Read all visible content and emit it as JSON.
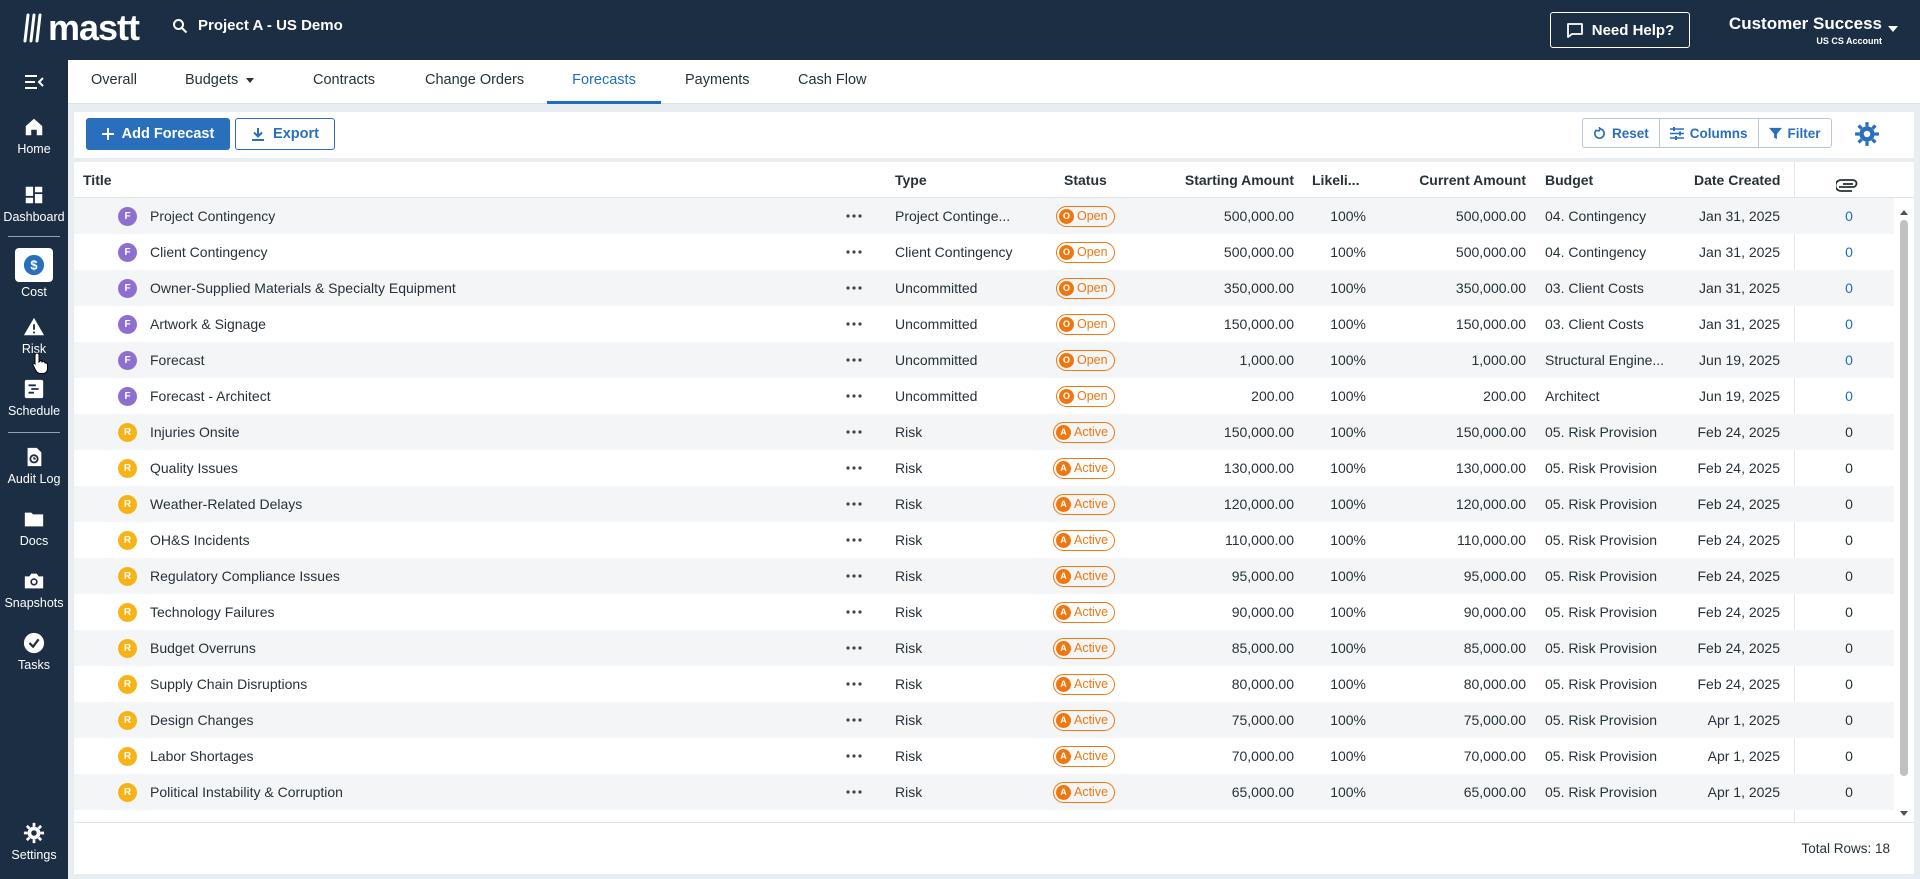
{
  "app": {
    "logo_text": "mastt"
  },
  "topbar": {
    "project": "Project A - US Demo",
    "help_label": "Need Help?",
    "account_name": "Customer Success",
    "account_sub": "US CS Account"
  },
  "sidebar": {
    "items": [
      {
        "label": "Home",
        "icon": "home-icon"
      },
      {
        "label": "Dashboard",
        "icon": "dashboard-icon"
      },
      {
        "label": "Cost",
        "icon": "dollar-icon"
      },
      {
        "label": "Risk",
        "icon": "warning-icon"
      },
      {
        "label": "Schedule",
        "icon": "schedule-icon"
      },
      {
        "label": "Audit Log",
        "icon": "audit-icon"
      },
      {
        "label": "Docs",
        "icon": "folder-icon"
      },
      {
        "label": "Snapshots",
        "icon": "camera-icon"
      },
      {
        "label": "Tasks",
        "icon": "check-circle-icon"
      },
      {
        "label": "Settings",
        "icon": "gear-icon"
      }
    ]
  },
  "tabs": [
    "Overall",
    "Budgets",
    "Contracts",
    "Change Orders",
    "Forecasts",
    "Payments",
    "Cash Flow"
  ],
  "active_tab": "Forecasts",
  "toolbar": {
    "add_label": "Add Forecast",
    "export_label": "Export",
    "reset_label": "Reset",
    "columns_label": "Columns",
    "filter_label": "Filter"
  },
  "columns": {
    "title": "Title",
    "type": "Type",
    "status": "Status",
    "starting_amount": "Starting Amount",
    "likelihood": "Likeli...",
    "current_amount": "Current Amount",
    "budget": "Budget",
    "date_created": "Date Created"
  },
  "rows": [
    {
      "avatar": "F",
      "title": "Project Contingency",
      "type": "Project Continge...",
      "status_icon": "O",
      "status": "Open",
      "starting": "500,000.00",
      "likelihood": "100%",
      "current": "500,000.00",
      "budget": "04. Contingency",
      "date": "Jan 31, 2025",
      "attachments": "0"
    },
    {
      "avatar": "F",
      "title": "Client Contingency",
      "type": "Client Contingency",
      "status_icon": "O",
      "status": "Open",
      "starting": "500,000.00",
      "likelihood": "100%",
      "current": "500,000.00",
      "budget": "04. Contingency",
      "date": "Jan 31, 2025",
      "attachments": "0"
    },
    {
      "avatar": "F",
      "title": "Owner-Supplied Materials & Specialty Equipment",
      "type": "Uncommitted",
      "status_icon": "O",
      "status": "Open",
      "starting": "350,000.00",
      "likelihood": "100%",
      "current": "350,000.00",
      "budget": "03. Client Costs",
      "date": "Jan 31, 2025",
      "attachments": "0"
    },
    {
      "avatar": "F",
      "title": "Artwork & Signage",
      "type": "Uncommitted",
      "status_icon": "O",
      "status": "Open",
      "starting": "150,000.00",
      "likelihood": "100%",
      "current": "150,000.00",
      "budget": "03. Client Costs",
      "date": "Jan 31, 2025",
      "attachments": "0"
    },
    {
      "avatar": "F",
      "title": "Forecast",
      "type": "Uncommitted",
      "status_icon": "O",
      "status": "Open",
      "starting": "1,000.00",
      "likelihood": "100%",
      "current": "1,000.00",
      "budget": "Structural Engine...",
      "date": "Jun 19, 2025",
      "attachments": "0"
    },
    {
      "avatar": "F",
      "title": "Forecast - Architect",
      "type": "Uncommitted",
      "status_icon": "O",
      "status": "Open",
      "starting": "200.00",
      "likelihood": "100%",
      "current": "200.00",
      "budget": "Architect",
      "date": "Jun 19, 2025",
      "attachments": "0"
    },
    {
      "avatar": "R",
      "title": "Injuries Onsite",
      "type": "Risk",
      "status_icon": "A",
      "status": "Active",
      "starting": "150,000.00",
      "likelihood": "100%",
      "current": "150,000.00",
      "budget": "05. Risk Provision",
      "date": "Feb 24, 2025",
      "attachments": "0"
    },
    {
      "avatar": "R",
      "title": "Quality Issues",
      "type": "Risk",
      "status_icon": "A",
      "status": "Active",
      "starting": "130,000.00",
      "likelihood": "100%",
      "current": "130,000.00",
      "budget": "05. Risk Provision",
      "date": "Feb 24, 2025",
      "attachments": "0"
    },
    {
      "avatar": "R",
      "title": "Weather-Related Delays",
      "type": "Risk",
      "status_icon": "A",
      "status": "Active",
      "starting": "120,000.00",
      "likelihood": "100%",
      "current": "120,000.00",
      "budget": "05. Risk Provision",
      "date": "Feb 24, 2025",
      "attachments": "0"
    },
    {
      "avatar": "R",
      "title": "OH&S Incidents",
      "type": "Risk",
      "status_icon": "A",
      "status": "Active",
      "starting": "110,000.00",
      "likelihood": "100%",
      "current": "110,000.00",
      "budget": "05. Risk Provision",
      "date": "Feb 24, 2025",
      "attachments": "0"
    },
    {
      "avatar": "R",
      "title": "Regulatory Compliance Issues",
      "type": "Risk",
      "status_icon": "A",
      "status": "Active",
      "starting": "95,000.00",
      "likelihood": "100%",
      "current": "95,000.00",
      "budget": "05. Risk Provision",
      "date": "Feb 24, 2025",
      "attachments": "0"
    },
    {
      "avatar": "R",
      "title": "Technology Failures",
      "type": "Risk",
      "status_icon": "A",
      "status": "Active",
      "starting": "90,000.00",
      "likelihood": "100%",
      "current": "90,000.00",
      "budget": "05. Risk Provision",
      "date": "Feb 24, 2025",
      "attachments": "0"
    },
    {
      "avatar": "R",
      "title": "Budget Overruns",
      "type": "Risk",
      "status_icon": "A",
      "status": "Active",
      "starting": "85,000.00",
      "likelihood": "100%",
      "current": "85,000.00",
      "budget": "05. Risk Provision",
      "date": "Feb 24, 2025",
      "attachments": "0"
    },
    {
      "avatar": "R",
      "title": "Supply Chain Disruptions",
      "type": "Risk",
      "status_icon": "A",
      "status": "Active",
      "starting": "80,000.00",
      "likelihood": "100%",
      "current": "80,000.00",
      "budget": "05. Risk Provision",
      "date": "Feb 24, 2025",
      "attachments": "0"
    },
    {
      "avatar": "R",
      "title": "Design Changes",
      "type": "Risk",
      "status_icon": "A",
      "status": "Active",
      "starting": "75,000.00",
      "likelihood": "100%",
      "current": "75,000.00",
      "budget": "05. Risk Provision",
      "date": "Apr 1, 2025",
      "attachments": "0"
    },
    {
      "avatar": "R",
      "title": "Labor Shortages",
      "type": "Risk",
      "status_icon": "A",
      "status": "Active",
      "starting": "70,000.00",
      "likelihood": "100%",
      "current": "70,000.00",
      "budget": "05. Risk Provision",
      "date": "Apr 1, 2025",
      "attachments": "0"
    },
    {
      "avatar": "R",
      "title": "Political Instability & Corruption",
      "type": "Risk",
      "status_icon": "A",
      "status": "Active",
      "starting": "65,000.00",
      "likelihood": "100%",
      "current": "65,000.00",
      "budget": "05. Risk Provision",
      "date": "Apr 1, 2025",
      "attachments": "0"
    }
  ],
  "footer": {
    "total_rows": "Total Rows: 18"
  },
  "colors": {
    "navy": "#1c2e44",
    "accent": "#2a6fbb",
    "status_orange": "#f0770f",
    "forecast_purple": "#8e6fd0",
    "risk_yellow": "#f6b418"
  }
}
